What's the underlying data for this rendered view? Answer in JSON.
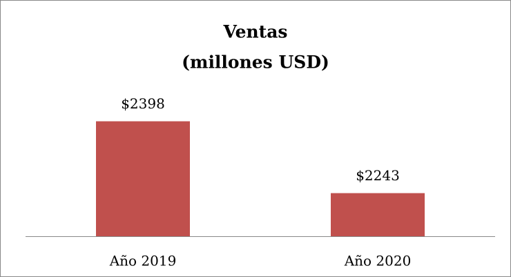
{
  "chart_data": {
    "type": "bar",
    "title": [
      "Ventas",
      "(millones USD)"
    ],
    "categories": [
      "Año 2019",
      "Año 2020"
    ],
    "values": [
      2398,
      2243
    ],
    "value_labels": [
      "$2398",
      "$2243"
    ],
    "color": "#c0504d",
    "ylim": [
      2150,
      2600
    ]
  }
}
